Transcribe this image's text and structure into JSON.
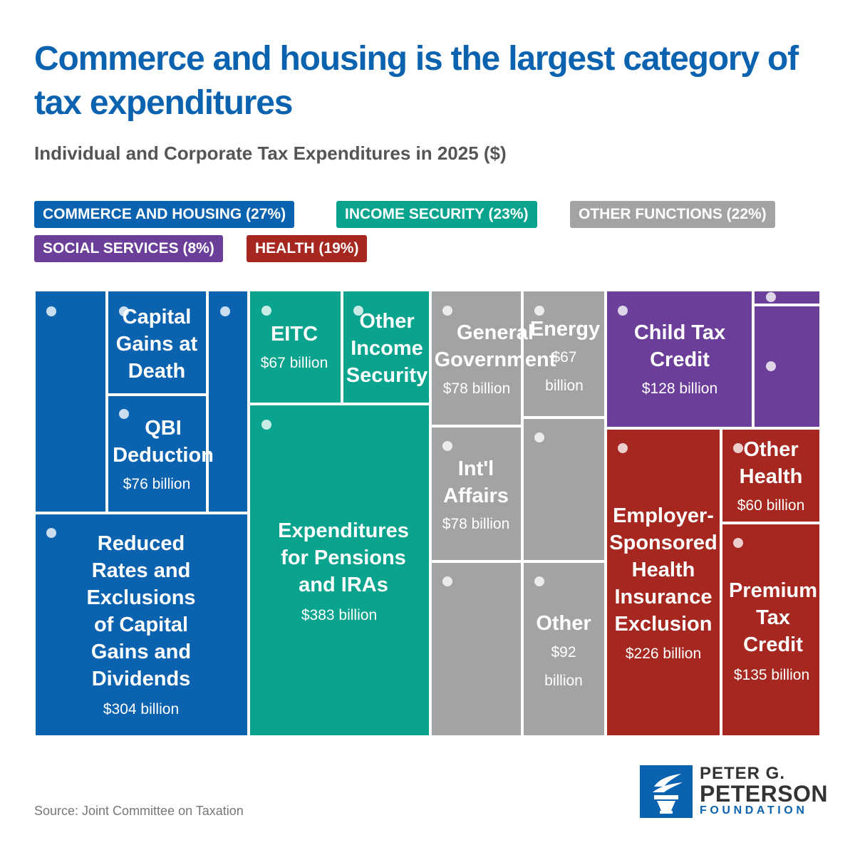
{
  "title": "Commerce and housing is the largest category of tax expenditures",
  "subtitle": "Individual and Corporate Tax Expenditures in 2025 ($)",
  "legend": [
    {
      "label": "COMMERCE AND HOUSING (27%)",
      "color": "#0b63b0"
    },
    {
      "label": "INCOME SECURITY (23%)",
      "color": "#0aa38e"
    },
    {
      "label": "OTHER FUNCTIONS (22%)",
      "color": "#a3a3a3"
    },
    {
      "label": "SOCIAL SERVICES (8%)",
      "color": "#6b3f99"
    },
    {
      "label": "HEALTH (19%)",
      "color": "#a5271f"
    }
  ],
  "chart_data": {
    "type": "treemap",
    "title": "Individual and Corporate Tax Expenditures in 2025 ($)",
    "unit": "$ billion",
    "categories": [
      {
        "name": "COMMERCE AND HOUSING",
        "share_pct": 27,
        "color": "#0b63b0",
        "items": [
          {
            "name": "",
            "value": null
          },
          {
            "name": "Capital Gains at Death",
            "value": null
          },
          {
            "name": "",
            "value": null
          },
          {
            "name": "QBI Deduction",
            "value": 76,
            "value_label": "$76 billion"
          },
          {
            "name": "Reduced Rates and Exclusions of Capital Gains and Dividends",
            "value": 304,
            "value_label": "$304 billion"
          }
        ]
      },
      {
        "name": "INCOME SECURITY",
        "share_pct": 23,
        "color": "#0aa38e",
        "items": [
          {
            "name": "EITC",
            "value": 67,
            "value_label": "$67 billion"
          },
          {
            "name": "Other Income Security",
            "value": null
          },
          {
            "name": "Expenditures for Pensions and IRAs",
            "value": 383,
            "value_label": "$383 billion"
          }
        ]
      },
      {
        "name": "OTHER FUNCTIONS",
        "share_pct": 22,
        "color": "#a3a3a3",
        "items": [
          {
            "name": "General Government",
            "value": 78,
            "value_label": "$78 billion"
          },
          {
            "name": "Energy",
            "value": 67,
            "value_label": "$67 billion"
          },
          {
            "name": "Int'l Affairs",
            "value": 78,
            "value_label": "$78 billion"
          },
          {
            "name": "",
            "value": null
          },
          {
            "name": "",
            "value": null
          },
          {
            "name": "Other",
            "value": 92,
            "value_label": "$92 billion"
          }
        ]
      },
      {
        "name": "SOCIAL SERVICES",
        "share_pct": 8,
        "color": "#6b3f99",
        "items": [
          {
            "name": "Child Tax Credit",
            "value": 128,
            "value_label": "$128 billion"
          },
          {
            "name": "",
            "value": null
          },
          {
            "name": "",
            "value": null
          }
        ]
      },
      {
        "name": "HEALTH",
        "share_pct": 19,
        "color": "#a5271f",
        "items": [
          {
            "name": "Employer-Sponsored Health Insurance Exclusion",
            "value": 226,
            "value_label": "$226 billion"
          },
          {
            "name": "Other Health",
            "value": 60,
            "value_label": "$60 billion"
          },
          {
            "name": "Premium Tax Credit",
            "value": 135,
            "value_label": "$135 billion"
          }
        ]
      }
    ]
  },
  "tile_labels": {
    "cap_gains_death": "Capital\nGains at\nDeath",
    "qbi": "QBI\nDeduction",
    "qbi_value": "$76 billion",
    "reduced_rates": "Reduced\nRates and\nExclusions\nof Capital\nGains and\nDividends",
    "reduced_rates_value": "$304 billion",
    "eitc": "EITC",
    "eitc_value": "$67 billion",
    "other_income": "Other\nIncome\nSecurity",
    "pensions": "Expenditures\nfor Pensions\nand IRAs",
    "pensions_value": "$383 billion",
    "general_gov": "General\nGovernment",
    "general_gov_value": "$78 billion",
    "energy": "Energy",
    "energy_value": "$67\nbillion",
    "intl": "Int'l\nAffairs",
    "intl_value": "$78 billion",
    "other": "Other",
    "other_value": "$92\nbillion",
    "child_tax": "Child Tax\nCredit",
    "child_tax_value": "$128 billion",
    "employer": "Employer-\nSponsored\nHealth\nInsurance\nExclusion",
    "employer_value": "$226 billion",
    "other_health": "Other\nHealth",
    "other_health_value": "$60 billion",
    "premium": "Premium\nTax\nCredit",
    "premium_value": "$135 billion"
  },
  "source": "Source: Joint Committee on Taxation",
  "logo": {
    "line1": "PETER G.",
    "line2": "PETERSON",
    "line3": "FOUNDATION"
  }
}
